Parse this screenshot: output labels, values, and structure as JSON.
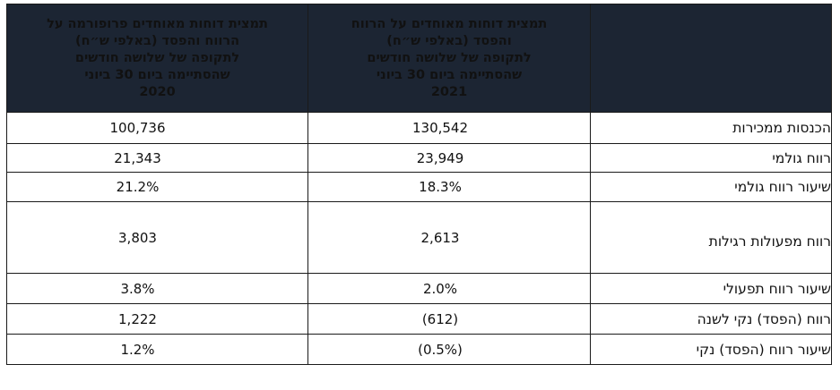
{
  "table": {
    "headers": {
      "col_2020": [
        "תמצית דוחות מאוחדים פרופורמה על",
        "הרווח והפסד (באלפי ש״ח)",
        "לתקופה של שלושה חודשים",
        "שהסתיימה ביום 30 ביוני",
        "2020"
      ],
      "col_2021": [
        "תמצית דוחות מאוחדים על הרווח",
        "והפסד (באלפי ש״ח)",
        "לתקופה של שלושה חודשים",
        "שהסתיימה ביום 30 ביוני",
        "2021"
      ],
      "col_label": ""
    },
    "rows": [
      {
        "label": "הכנסות ממכירות",
        "v2020": "100,736",
        "v2021": "130,542"
      },
      {
        "label": "רווח גולמי",
        "v2020": "21,343",
        "v2021": "23,949"
      },
      {
        "label": "שיעור רווח גולמי",
        "v2020": "21.2%",
        "v2021": "18.3%"
      },
      {
        "label": "רווח מפעולות רגילות",
        "v2020": "3,803",
        "v2021": "2,613"
      },
      {
        "label": "שיעור רווח תפעולי",
        "v2020": "3.8%",
        "v2021": "2.0%"
      },
      {
        "label": "רווח (הפסד) נקי לשנה",
        "v2020": "1,222",
        "v2021": "(612)"
      },
      {
        "label": "שיעור רווח (הפסד) נקי",
        "v2020": "1.2%",
        "v2021": "(0.5%)"
      }
    ]
  },
  "colors": {
    "header_bg": "#1c2533",
    "header_text": "#ffffff",
    "border": "#1a1a1a"
  }
}
